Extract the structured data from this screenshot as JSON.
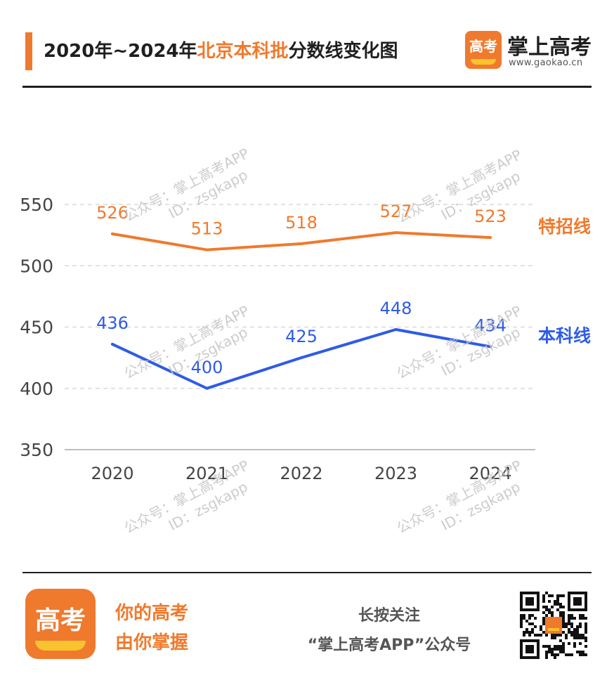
{
  "header": {
    "title_pre": "2020年~2024年",
    "title_highlight": "北京本科批",
    "title_post": "分数线变化图",
    "brand_logo_text": "高考",
    "brand_name": "掌上高考",
    "brand_url": "www.gaokao.cn"
  },
  "watermark": {
    "line1": "公众号：掌上高考APP",
    "line2": "ID：zsgkapp"
  },
  "colors": {
    "accent": "#ef7a2d",
    "series_special": "#ef7a2d",
    "series_undergrad": "#2f5be6",
    "grid": "#d9d9d9",
    "axis": "#bfbfbf",
    "text": "#1f1f1f"
  },
  "chart_data": {
    "type": "line",
    "categories": [
      "2020",
      "2021",
      "2022",
      "2023",
      "2024"
    ],
    "ylim": [
      350,
      550
    ],
    "yticks": [
      550,
      500,
      450,
      400,
      350
    ],
    "grid": true,
    "legend_placement": "right, beside each line end",
    "series": [
      {
        "name": "特招线",
        "values": [
          526,
          513,
          518,
          527,
          523
        ]
      },
      {
        "name": "本科线",
        "values": [
          436,
          400,
          425,
          448,
          434
        ]
      }
    ]
  },
  "footer": {
    "logo_text": "高考",
    "slogan_line1": "你的高考",
    "slogan_line2": "由你掌握",
    "follow_line1": "长按关注",
    "follow_line2": "“掌上高考APP”公众号"
  }
}
